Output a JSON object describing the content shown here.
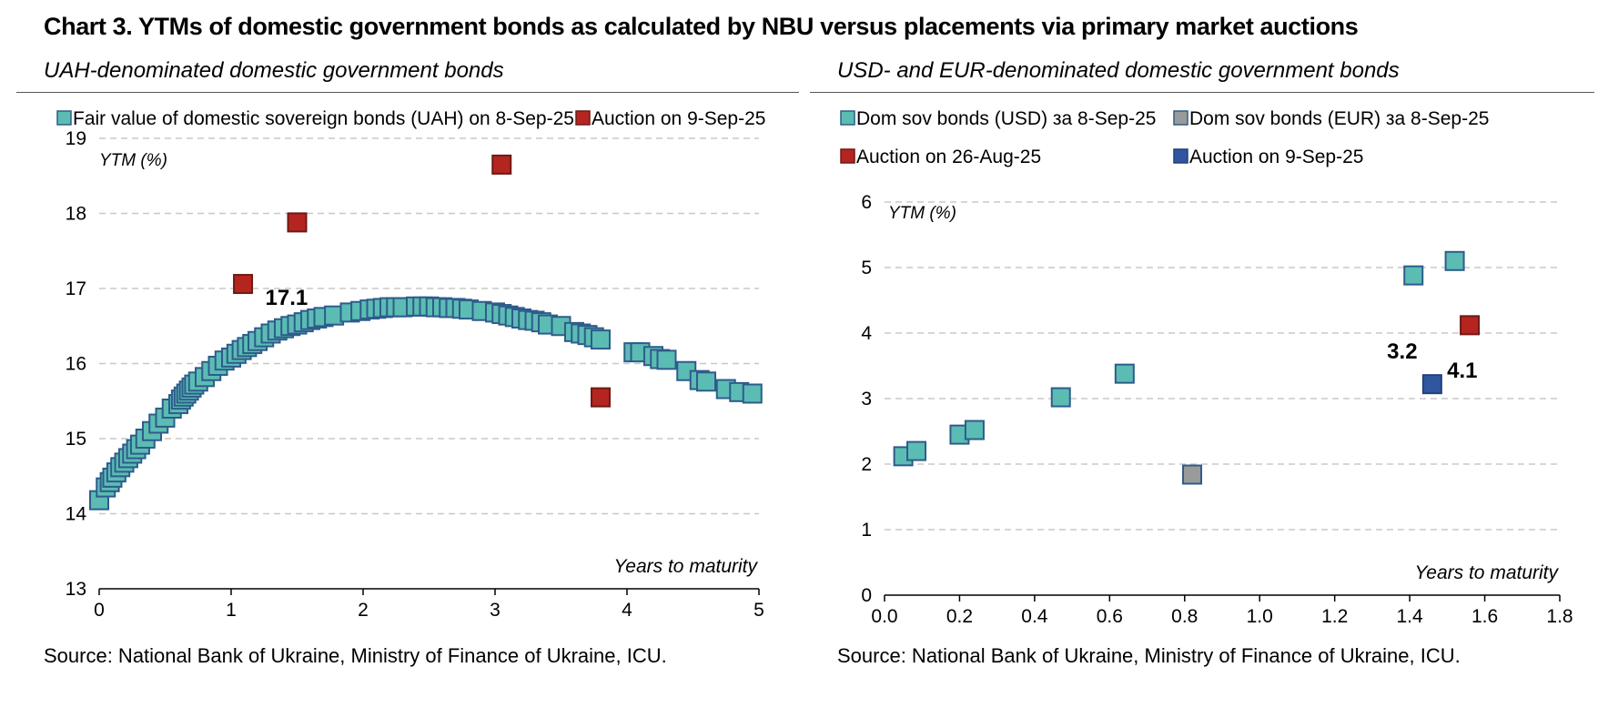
{
  "title": "Chart 3. YTMs of domestic government bonds as calculated by NBU versus placements via primary market auctions",
  "colors": {
    "teal": "#5bbcb4",
    "teal_border": "#2e5c8a",
    "red": "#b5251f",
    "red_border": "#6e1a16",
    "gray": "#9a9a9a",
    "gray_border": "#2e5c8a",
    "blue": "#3056a0",
    "blue_border": "#22407a",
    "grid": "#c8c8c8"
  },
  "left": {
    "subtitle": "UAH-denominated domestic government bonds",
    "source": "Source: National Bank of Ukraine, Ministry of Finance of Ukraine, ICU."
  },
  "right": {
    "subtitle": "USD- and EUR-denominated domestic government bonds",
    "source": "Source: National Bank of Ukraine, Ministry of Finance of Ukraine, ICU."
  },
  "chart_data": [
    {
      "type": "scatter",
      "title": "UAH-denominated domestic government bonds",
      "xlabel": "Years to maturity",
      "ylabel": "YTM (%)",
      "xlim": [
        0,
        5
      ],
      "ylim": [
        13,
        19
      ],
      "xticks": [
        0,
        1,
        2,
        3,
        4,
        5
      ],
      "yticks": [
        13,
        14,
        15,
        16,
        17,
        18,
        19
      ],
      "grid": true,
      "legend_position": "top",
      "series": [
        {
          "name": "Fair value of domestic sovereign bonds (UAH) on 8-Sep-25",
          "color": "teal",
          "points": [
            [
              0.0,
              14.18
            ],
            [
              0.05,
              14.35
            ],
            [
              0.08,
              14.42
            ],
            [
              0.1,
              14.48
            ],
            [
              0.13,
              14.55
            ],
            [
              0.16,
              14.62
            ],
            [
              0.19,
              14.68
            ],
            [
              0.22,
              14.74
            ],
            [
              0.25,
              14.8
            ],
            [
              0.28,
              14.86
            ],
            [
              0.31,
              14.92
            ],
            [
              0.35,
              15.0
            ],
            [
              0.4,
              15.1
            ],
            [
              0.45,
              15.2
            ],
            [
              0.5,
              15.28
            ],
            [
              0.55,
              15.4
            ],
            [
              0.6,
              15.46
            ],
            [
              0.62,
              15.52
            ],
            [
              0.64,
              15.56
            ],
            [
              0.66,
              15.6
            ],
            [
              0.68,
              15.64
            ],
            [
              0.7,
              15.68
            ],
            [
              0.72,
              15.72
            ],
            [
              0.75,
              15.76
            ],
            [
              0.8,
              15.82
            ],
            [
              0.85,
              15.9
            ],
            [
              0.9,
              15.97
            ],
            [
              0.95,
              16.04
            ],
            [
              1.0,
              16.08
            ],
            [
              1.04,
              16.13
            ],
            [
              1.08,
              16.18
            ],
            [
              1.12,
              16.22
            ],
            [
              1.16,
              16.26
            ],
            [
              1.2,
              16.3
            ],
            [
              1.25,
              16.35
            ],
            [
              1.3,
              16.4
            ],
            [
              1.35,
              16.44
            ],
            [
              1.4,
              16.47
            ],
            [
              1.45,
              16.5
            ],
            [
              1.5,
              16.52
            ],
            [
              1.55,
              16.55
            ],
            [
              1.6,
              16.58
            ],
            [
              1.65,
              16.6
            ],
            [
              1.7,
              16.62
            ],
            [
              1.78,
              16.64
            ],
            [
              1.9,
              16.68
            ],
            [
              1.98,
              16.7
            ],
            [
              2.05,
              16.72
            ],
            [
              2.1,
              16.73
            ],
            [
              2.15,
              16.74
            ],
            [
              2.2,
              16.75
            ],
            [
              2.25,
              16.75
            ],
            [
              2.3,
              16.75
            ],
            [
              2.4,
              16.76
            ],
            [
              2.45,
              16.76
            ],
            [
              2.5,
              16.76
            ],
            [
              2.55,
              16.75
            ],
            [
              2.6,
              16.75
            ],
            [
              2.65,
              16.74
            ],
            [
              2.7,
              16.74
            ],
            [
              2.75,
              16.73
            ],
            [
              2.8,
              16.72
            ],
            [
              2.9,
              16.7
            ],
            [
              3.0,
              16.68
            ],
            [
              3.05,
              16.66
            ],
            [
              3.1,
              16.64
            ],
            [
              3.15,
              16.62
            ],
            [
              3.2,
              16.6
            ],
            [
              3.25,
              16.58
            ],
            [
              3.3,
              16.57
            ],
            [
              3.35,
              16.55
            ],
            [
              3.4,
              16.52
            ],
            [
              3.5,
              16.5
            ],
            [
              3.6,
              16.42
            ],
            [
              3.65,
              16.4
            ],
            [
              3.7,
              16.38
            ],
            [
              3.75,
              16.35
            ],
            [
              3.8,
              16.32
            ],
            [
              4.05,
              16.15
            ],
            [
              4.1,
              16.15
            ],
            [
              4.2,
              16.1
            ],
            [
              4.25,
              16.06
            ],
            [
              4.3,
              16.05
            ],
            [
              4.45,
              15.9
            ],
            [
              4.55,
              15.78
            ],
            [
              4.6,
              15.76
            ],
            [
              4.75,
              15.66
            ],
            [
              4.85,
              15.62
            ],
            [
              4.95,
              15.6
            ]
          ]
        },
        {
          "name": "Auction on 9-Sep-25",
          "color": "red",
          "points": [
            [
              1.09,
              17.06
            ],
            [
              1.5,
              17.88
            ],
            [
              3.05,
              18.65
            ],
            [
              3.8,
              15.55
            ]
          ]
        }
      ],
      "annotations": [
        {
          "text": "17.1",
          "x": 1.42,
          "y": 16.88
        }
      ]
    },
    {
      "type": "scatter",
      "title": "USD- and EUR-denominated domestic government bonds",
      "xlabel": "Years to maturity",
      "ylabel": "YTM (%)",
      "xlim": [
        0,
        1.8
      ],
      "ylim": [
        0,
        6
      ],
      "xticks": [
        "0.0",
        "0.2",
        "0.4",
        "0.6",
        "0.8",
        "1.0",
        "1.2",
        "1.4",
        "1.6",
        "1.8"
      ],
      "yticks": [
        0,
        1,
        2,
        3,
        4,
        5,
        6
      ],
      "grid": true,
      "legend_position": "top",
      "series": [
        {
          "name": "Dom sov bonds (USD) за 8-Sep-25",
          "color": "teal",
          "points": [
            [
              0.05,
              2.12
            ],
            [
              0.085,
              2.2
            ],
            [
              0.2,
              2.45
            ],
            [
              0.24,
              2.52
            ],
            [
              0.47,
              3.02
            ],
            [
              0.64,
              3.38
            ],
            [
              1.41,
              4.88
            ],
            [
              1.52,
              5.1
            ]
          ]
        },
        {
          "name": "Dom sov bonds (EUR) за 8-Sep-25",
          "color": "gray",
          "points": [
            [
              0.82,
              1.84
            ]
          ]
        },
        {
          "name": "Auction on 26-Aug-25",
          "color": "red",
          "points": [
            [
              1.56,
              4.12
            ]
          ]
        },
        {
          "name": "Auction on 9-Sep-25",
          "color": "blue",
          "points": [
            [
              1.46,
              3.22
            ]
          ]
        }
      ],
      "annotations": [
        {
          "text": "3.2",
          "x": 1.38,
          "y": 3.72
        },
        {
          "text": "4.1",
          "x": 1.54,
          "y": 3.43
        }
      ]
    }
  ]
}
